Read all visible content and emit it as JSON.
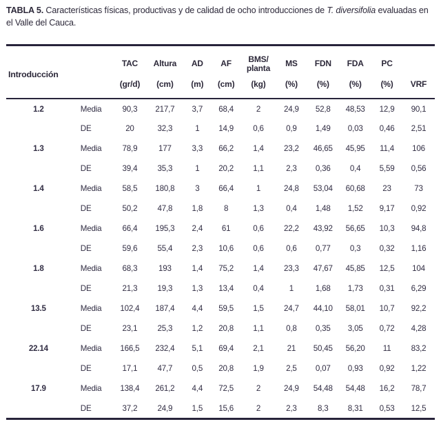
{
  "title": {
    "label": "TABLA 5.",
    "text": " Características físicas, productivas y de calidad de ocho introducciones de ",
    "species": "T. diversifolia",
    "rest": " evaluadas en el Valle del Cauca."
  },
  "table": {
    "row_header": "Introducción",
    "stat_labels": {
      "media": "Media",
      "de": "DE"
    },
    "columns": [
      {
        "label": "TAC",
        "label2": "",
        "unit": "(gr/d)"
      },
      {
        "label": "Altura",
        "label2": "",
        "unit": "(cm)"
      },
      {
        "label": "AD",
        "label2": "",
        "unit": "(m)"
      },
      {
        "label": "AF",
        "label2": "",
        "unit": "(cm)"
      },
      {
        "label": "BMS/",
        "label2": "planta",
        "unit": "(kg)"
      },
      {
        "label": "MS",
        "label2": "",
        "unit": "(%)"
      },
      {
        "label": "FDN",
        "label2": "",
        "unit": "(%)"
      },
      {
        "label": "FDA",
        "label2": "",
        "unit": "(%)"
      },
      {
        "label": "PC",
        "label2": "",
        "unit": "(%)"
      },
      {
        "label": "",
        "label2": "",
        "unit": "VRF"
      }
    ],
    "groups": [
      {
        "introduction": "1.2",
        "media": [
          "90,3",
          "217,7",
          "3,7",
          "68,4",
          "2",
          "24,9",
          "52,8",
          "48,53",
          "12,9",
          "90,1"
        ],
        "de": [
          "20",
          "32,3",
          "1",
          "14,9",
          "0,6",
          "0,9",
          "1,49",
          "0,03",
          "0,46",
          "2,51"
        ]
      },
      {
        "introduction": "1.3",
        "media": [
          "78,9",
          "177",
          "3,3",
          "66,2",
          "1,4",
          "23,2",
          "46,65",
          "45,95",
          "11,4",
          "106"
        ],
        "de": [
          "39,4",
          "35,3",
          "1",
          "20,2",
          "1,1",
          "2,3",
          "0,36",
          "0,4",
          "5,59",
          "0,56"
        ]
      },
      {
        "introduction": "1.4",
        "media": [
          "58,5",
          "180,8",
          "3",
          "66,4",
          "1",
          "24,8",
          "53,04",
          "60,68",
          "23",
          "73"
        ],
        "de": [
          "50,2",
          "47,8",
          "1,8",
          "8",
          "1,3",
          "0,4",
          "1,48",
          "1,52",
          "9,17",
          "0,92"
        ]
      },
      {
        "introduction": "1.6",
        "media": [
          "66,4",
          "195,3",
          "2,4",
          "61",
          "0,6",
          "22,2",
          "43,92",
          "56,65",
          "10,3",
          "94,8"
        ],
        "de": [
          "59,6",
          "55,4",
          "2,3",
          "10,6",
          "0,6",
          "0,6",
          "0,77",
          "0,3",
          "0,32",
          "1,16"
        ]
      },
      {
        "introduction": "1.8",
        "media": [
          "68,3",
          "193",
          "1,4",
          "75,2",
          "1,4",
          "23,3",
          "47,67",
          "45,85",
          "12,5",
          "104"
        ],
        "de": [
          "21,3",
          "19,3",
          "1,3",
          "13,4",
          "0,4",
          "1",
          "1,68",
          "1,73",
          "0,31",
          "6,29"
        ]
      },
      {
        "introduction": "13.5",
        "media": [
          "102,4",
          "187,4",
          "4,4",
          "59,5",
          "1,5",
          "24,7",
          "44,10",
          "58,01",
          "10,7",
          "92,2"
        ],
        "de": [
          "23,1",
          "25,3",
          "1,2",
          "20,8",
          "1,1",
          "0,8",
          "0,35",
          "3,05",
          "0,72",
          "4,28"
        ]
      },
      {
        "introduction": "22.14",
        "media": [
          "166,5",
          "232,4",
          "5,1",
          "69,4",
          "2,1",
          "21",
          "50,45",
          "56,20",
          "11",
          "83,2"
        ],
        "de": [
          "17,1",
          "47,7",
          "0,5",
          "20,8",
          "1,9",
          "2,5",
          "0,07",
          "0,93",
          "0,92",
          "1,22"
        ]
      },
      {
        "introduction": "17.9",
        "media": [
          "138,4",
          "261,2",
          "4,4",
          "72,5",
          "2",
          "24,9",
          "54,48",
          "54,48",
          "16,2",
          "78,7"
        ],
        "de": [
          "37,2",
          "24,9",
          "1,5",
          "15,6",
          "2",
          "2,3",
          "8,3",
          "8,31",
          "0,53",
          "12,5"
        ]
      }
    ]
  }
}
